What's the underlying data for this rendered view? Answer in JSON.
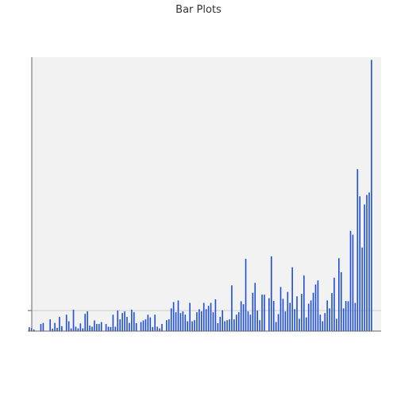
{
  "chart_data": {
    "type": "bar",
    "title": "Bar Plots",
    "xlabel": "",
    "ylabel": "",
    "x_tick_labels": [],
    "y_tick_labels": [],
    "ylim": [
      0,
      100
    ],
    "grid": false,
    "legend": "none",
    "colors": {
      "bar": "#1f4fd6",
      "plot_background": "#f2f2f2",
      "axis": "#666666",
      "reference_line": "#cccccc"
    },
    "reference_line_y": 7.5,
    "series": [
      {
        "values": [
          1.4,
          1.2,
          0.6,
          0,
          0,
          2.6,
          3.0,
          0,
          0,
          4.3,
          0.9,
          3.0,
          1.2,
          5.2,
          1.8,
          0,
          6.0,
          3.6,
          1.0,
          7.8,
          1.6,
          1.0,
          2.8,
          1.0,
          6.3,
          7.2,
          2.0,
          1.6,
          3.9,
          2.6,
          2.6,
          3.3,
          0,
          2.6,
          1.6,
          1.5,
          6.0,
          1.6,
          7.5,
          4.3,
          6.6,
          7.2,
          5.2,
          3.0,
          7.8,
          6.9,
          2.9,
          0,
          3.3,
          3.9,
          4.3,
          6.0,
          5.0,
          1.5,
          6.0,
          1.6,
          1.0,
          2.6,
          0,
          4.0,
          4.3,
          8.3,
          10.6,
          6.9,
          11.2,
          6.6,
          7.2,
          6.0,
          3.6,
          10.3,
          3.6,
          4.0,
          6.9,
          8.0,
          7.2,
          10.3,
          8.0,
          9.2,
          10.3,
          6.9,
          11.6,
          2.9,
          5.2,
          7.6,
          3.6,
          4.0,
          4.3,
          16.7,
          4.3,
          6.0,
          6.9,
          10.9,
          9.8,
          26.4,
          7.2,
          6.0,
          14.0,
          17.6,
          7.5,
          4.0,
          13.3,
          13.3,
          0,
          12.0,
          27.3,
          11.0,
          3.3,
          6.2,
          16.1,
          11.8,
          7.2,
          14.3,
          10.3,
          23.3,
          8.0,
          12.7,
          4.5,
          13.6,
          20.3,
          5.0,
          10.0,
          11.2,
          14.0,
          17.0,
          18.5,
          6.0,
          3.6,
          6.6,
          11.2,
          8.3,
          13.9,
          19.5,
          4.5,
          26.6,
          21.5,
          8.3,
          11.0,
          10.9,
          36.6,
          35.2,
          10.3,
          59.1,
          49.2,
          30.5,
          46.2,
          49.7,
          50.6,
          99.0
        ]
      }
    ]
  }
}
